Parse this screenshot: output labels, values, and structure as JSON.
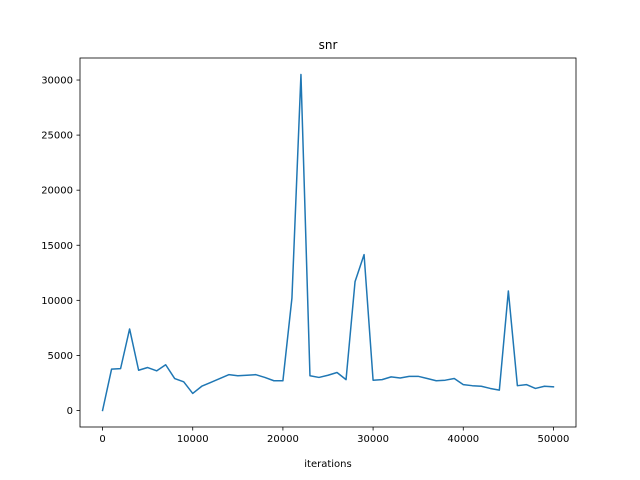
{
  "chart_data": {
    "type": "line",
    "title": "snr",
    "xlabel": "iterations",
    "ylabel": "",
    "xlim": [
      -2500,
      52500
    ],
    "ylim": [
      -1500,
      32000
    ],
    "x_ticks": [
      0,
      10000,
      20000,
      30000,
      40000,
      50000
    ],
    "x_tick_labels": [
      "0",
      "10000",
      "20000",
      "30000",
      "40000",
      "50000"
    ],
    "y_ticks": [
      0,
      5000,
      10000,
      15000,
      20000,
      25000,
      30000
    ],
    "y_tick_labels": [
      "0",
      "5000",
      "10000",
      "15000",
      "20000",
      "25000",
      "30000"
    ],
    "grid": false,
    "series": [
      {
        "color": "#1f77b4",
        "x": [
          0,
          1000,
          2000,
          3000,
          4000,
          5000,
          6000,
          7000,
          8000,
          9000,
          10000,
          11000,
          12000,
          13000,
          14000,
          15000,
          16000,
          17000,
          18000,
          19000,
          20000,
          21000,
          22000,
          23000,
          24000,
          25000,
          26000,
          27000,
          28000,
          29000,
          30000,
          31000,
          32000,
          33000,
          34000,
          35000,
          36000,
          37000,
          38000,
          39000,
          40000,
          41000,
          42000,
          43000,
          44000,
          45000,
          46000,
          47000,
          48000,
          49000,
          50000
        ],
        "y": [
          0,
          3750,
          3800,
          7400,
          3650,
          3900,
          3600,
          4150,
          2900,
          2600,
          1550,
          2200,
          2550,
          2900,
          3250,
          3150,
          3200,
          3250,
          3000,
          2700,
          2700,
          10200,
          30500,
          3150,
          3000,
          3200,
          3450,
          2800,
          11700,
          14150,
          2750,
          2800,
          3050,
          2950,
          3100,
          3100,
          2900,
          2700,
          2750,
          2900,
          2350,
          2250,
          2200,
          2000,
          1850,
          10850,
          2250,
          2350,
          2000,
          2200,
          2150
        ]
      }
    ]
  }
}
